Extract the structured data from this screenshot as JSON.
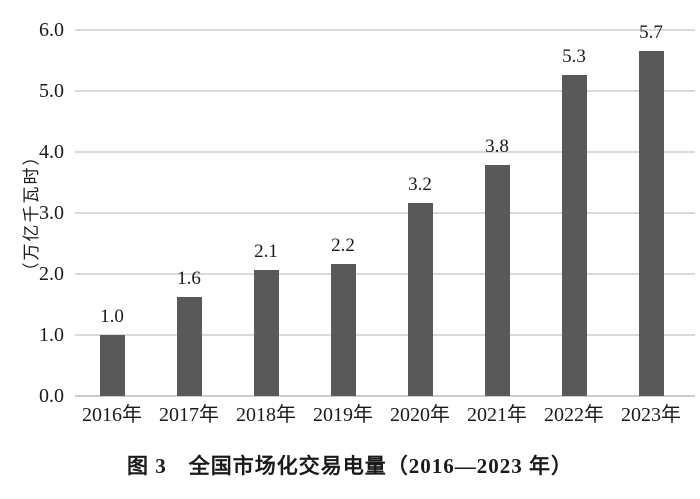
{
  "colors": {
    "bar": "#595959",
    "gridline": "#d9d9d9",
    "baseline": "#cccccc",
    "text": "#1a1a1a",
    "background": "#ffffff"
  },
  "chart_data": {
    "type": "bar",
    "categories": [
      "2016年",
      "2017年",
      "2018年",
      "2019年",
      "2020年",
      "2021年",
      "2022年",
      "2023年"
    ],
    "values": [
      1.0,
      1.63,
      2.06,
      2.16,
      3.16,
      3.78,
      5.26,
      5.65
    ],
    "value_labels": [
      "1.0",
      "1.6",
      "2.1",
      "2.2",
      "3.2",
      "3.8",
      "5.3",
      "5.7"
    ],
    "title": "图 3　全国市场化交易电量（2016—2023 年）",
    "xlabel": "",
    "ylabel": "（万亿千瓦时）",
    "ylim": [
      0.0,
      6.0
    ],
    "ytick_step": 1.0,
    "yticks": [
      "0.0",
      "1.0",
      "2.0",
      "3.0",
      "4.0",
      "5.0",
      "6.0"
    ],
    "grid": "horizontal",
    "legend": "none",
    "series_color": "#595959"
  },
  "caption": {
    "text": "图 3　全国市场化交易电量（2016—2023 年）"
  }
}
